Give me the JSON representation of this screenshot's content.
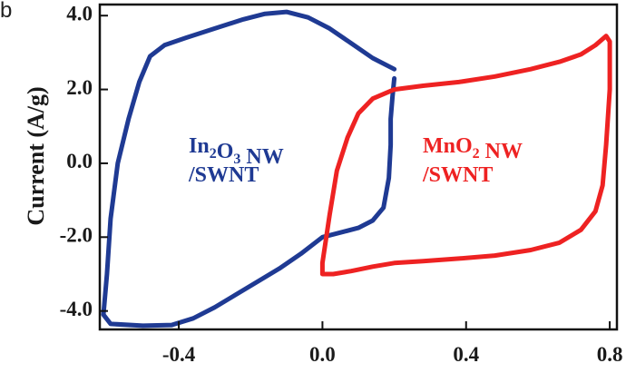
{
  "panel_label": "b",
  "chart_data": {
    "type": "line",
    "xlabel": "",
    "ylabel": "Current (A/g)",
    "xlim": [
      -0.62,
      0.82
    ],
    "ylim": [
      -4.5,
      4.3
    ],
    "x_ticks": [
      -0.4,
      0.0,
      0.4,
      0.8
    ],
    "x_tick_labels": [
      "-0.4",
      "0.0",
      "0.4",
      "0.8"
    ],
    "y_ticks": [
      4.0,
      2.0,
      0.0,
      -2.0,
      -4.0
    ],
    "y_tick_labels": [
      "4.0",
      "2.0",
      "0.0",
      "-2.0",
      "-4.0"
    ],
    "grid": false,
    "series": [
      {
        "name_line1_main": "In",
        "name_line1_sub1": "2",
        "name_line1_mid": "O",
        "name_line1_sub2": "3",
        "name_line1_end": " NW",
        "name_line2": "/SWNT",
        "color": "#1f3a93",
        "points": [
          [
            0.2,
            2.55
          ],
          [
            0.14,
            2.85
          ],
          [
            0.08,
            3.25
          ],
          [
            0.02,
            3.65
          ],
          [
            -0.04,
            3.95
          ],
          [
            -0.1,
            4.1
          ],
          [
            -0.16,
            4.05
          ],
          [
            -0.22,
            3.9
          ],
          [
            -0.3,
            3.65
          ],
          [
            -0.38,
            3.4
          ],
          [
            -0.44,
            3.2
          ],
          [
            -0.48,
            2.9
          ],
          [
            -0.51,
            2.2
          ],
          [
            -0.54,
            1.2
          ],
          [
            -0.57,
            0.0
          ],
          [
            -0.59,
            -1.5
          ],
          [
            -0.6,
            -3.0
          ],
          [
            -0.61,
            -4.1
          ],
          [
            -0.59,
            -4.35
          ],
          [
            -0.5,
            -4.4
          ],
          [
            -0.42,
            -4.38
          ],
          [
            -0.36,
            -4.2
          ],
          [
            -0.3,
            -3.9
          ],
          [
            -0.24,
            -3.55
          ],
          [
            -0.18,
            -3.2
          ],
          [
            -0.12,
            -2.85
          ],
          [
            -0.06,
            -2.45
          ],
          [
            0.0,
            -2.0
          ],
          [
            0.06,
            -1.85
          ],
          [
            0.1,
            -1.75
          ],
          [
            0.14,
            -1.55
          ],
          [
            0.17,
            -1.2
          ],
          [
            0.185,
            -0.4
          ],
          [
            0.19,
            0.5
          ],
          [
            0.19,
            1.2
          ],
          [
            0.195,
            1.8
          ],
          [
            0.2,
            2.3
          ]
        ]
      },
      {
        "name_line1_main": "MnO",
        "name_line1_sub1": "2",
        "name_line1_mid": "",
        "name_line1_sub2": "",
        "name_line1_end": " NW",
        "name_line2": "/SWNT",
        "color": "#ee2222",
        "points": [
          [
            0.0,
            -3.0
          ],
          [
            0.0,
            -2.7
          ],
          [
            0.02,
            -1.4
          ],
          [
            0.04,
            -0.2
          ],
          [
            0.07,
            0.7
          ],
          [
            0.1,
            1.35
          ],
          [
            0.14,
            1.75
          ],
          [
            0.2,
            2.0
          ],
          [
            0.28,
            2.1
          ],
          [
            0.38,
            2.2
          ],
          [
            0.48,
            2.35
          ],
          [
            0.58,
            2.55
          ],
          [
            0.66,
            2.75
          ],
          [
            0.72,
            2.95
          ],
          [
            0.76,
            3.2
          ],
          [
            0.79,
            3.45
          ],
          [
            0.8,
            3.3
          ],
          [
            0.8,
            2.0
          ],
          [
            0.79,
            0.5
          ],
          [
            0.78,
            -0.6
          ],
          [
            0.76,
            -1.3
          ],
          [
            0.72,
            -1.8
          ],
          [
            0.66,
            -2.15
          ],
          [
            0.58,
            -2.35
          ],
          [
            0.48,
            -2.5
          ],
          [
            0.38,
            -2.58
          ],
          [
            0.28,
            -2.65
          ],
          [
            0.2,
            -2.7
          ],
          [
            0.14,
            -2.8
          ],
          [
            0.08,
            -2.92
          ],
          [
            0.03,
            -3.0
          ],
          [
            0.0,
            -3.0
          ]
        ]
      }
    ]
  }
}
